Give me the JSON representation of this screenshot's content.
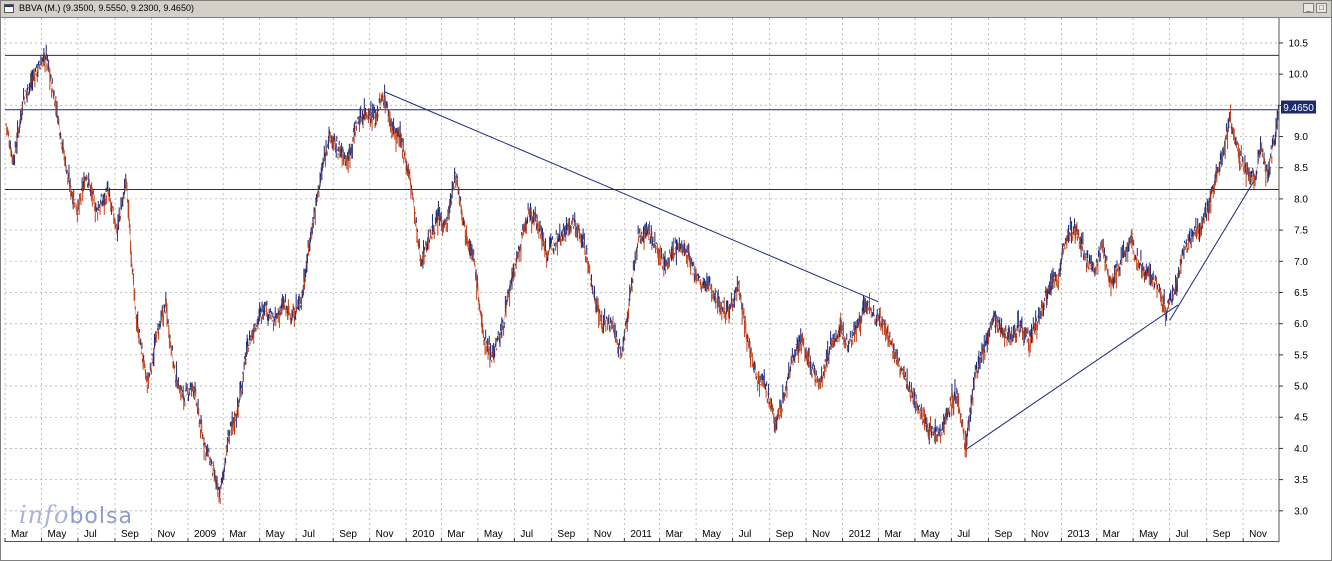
{
  "window": {
    "title": "BBVA (M.) (9.3500, 9.5550, 9.2300, 9.4650)",
    "controls": [
      "minimize",
      "maximize"
    ]
  },
  "logo": {
    "part1": "info",
    "part2": "bolsa"
  },
  "colors": {
    "price_up": "#1a2a7a",
    "price_down": "#c0401a",
    "line": "#1a2a7a",
    "grid": "#b0b0b0"
  },
  "chart_data": {
    "type": "line",
    "ylim": [
      2.5,
      10.9
    ],
    "yticks": [
      3.0,
      3.5,
      4.0,
      4.5,
      5.0,
      5.5,
      6.0,
      6.5,
      7.0,
      7.5,
      8.0,
      8.5,
      9.0,
      9.5,
      10.0,
      10.5
    ],
    "last_price_label": "9.4650",
    "last_price": 9.465,
    "x_labels": [
      "Mar",
      "May",
      "Jul",
      "Sep",
      "Nov",
      "2009",
      "Mar",
      "May",
      "Jul",
      "Sep",
      "Nov",
      "2010",
      "Mar",
      "May",
      "Jul",
      "Sep",
      "Nov",
      "2011",
      "Mar",
      "May",
      "Jul",
      "Sep",
      "Nov",
      "2012",
      "Mar",
      "May",
      "Jul",
      "Sep",
      "Nov",
      "2013",
      "Mar",
      "May",
      "Jul",
      "Sep",
      "Nov"
    ],
    "x_range": [
      "2008-03-01",
      "2013-12-31"
    ],
    "horizontal_lines": [
      10.3,
      9.43,
      8.15
    ],
    "trendlines": [
      {
        "from": [
          "2009-11-25",
          9.72
        ],
        "to": [
          "2012-03-01",
          6.35
        ]
      },
      {
        "from": [
          "2012-07-25",
          3.98
        ],
        "to": [
          "2013-07-15",
          6.3
        ]
      },
      {
        "from": [
          "2013-07-01",
          6.05
        ],
        "to": [
          "2013-11-20",
          8.3
        ]
      }
    ],
    "series": [
      {
        "values": [
          [
            "2008-03-03",
            9.2
          ],
          [
            "2008-03-15",
            8.6
          ],
          [
            "2008-04-01",
            9.6
          ],
          [
            "2008-04-20",
            10.0
          ],
          [
            "2008-05-08",
            10.3
          ],
          [
            "2008-05-25",
            9.5
          ],
          [
            "2008-06-15",
            8.3
          ],
          [
            "2008-07-01",
            7.8
          ],
          [
            "2008-07-15",
            8.4
          ],
          [
            "2008-08-01",
            7.8
          ],
          [
            "2008-08-20",
            8.1
          ],
          [
            "2008-09-05",
            7.5
          ],
          [
            "2008-09-20",
            8.3
          ],
          [
            "2008-10-05",
            6.2
          ],
          [
            "2008-10-25",
            5.0
          ],
          [
            "2008-11-10",
            5.8
          ],
          [
            "2008-11-25",
            6.3
          ],
          [
            "2008-12-10",
            5.2
          ],
          [
            "2008-12-25",
            4.8
          ],
          [
            "2009-01-10",
            5.0
          ],
          [
            "2009-01-25",
            4.2
          ],
          [
            "2009-02-10",
            3.7
          ],
          [
            "2009-02-23",
            3.2
          ],
          [
            "2009-03-10",
            4.2
          ],
          [
            "2009-03-25",
            4.6
          ],
          [
            "2009-04-10",
            5.6
          ],
          [
            "2009-04-25",
            6.0
          ],
          [
            "2009-05-10",
            6.3
          ],
          [
            "2009-05-25",
            6.0
          ],
          [
            "2009-06-10",
            6.3
          ],
          [
            "2009-06-25",
            6.1
          ],
          [
            "2009-07-10",
            6.4
          ],
          [
            "2009-07-25",
            7.4
          ],
          [
            "2009-08-10",
            8.3
          ],
          [
            "2009-08-25",
            9.0
          ],
          [
            "2009-09-10",
            8.8
          ],
          [
            "2009-09-25",
            8.6
          ],
          [
            "2009-10-10",
            9.2
          ],
          [
            "2009-10-25",
            9.4
          ],
          [
            "2009-11-10",
            9.3
          ],
          [
            "2009-11-25",
            9.65
          ],
          [
            "2009-12-10",
            9.1
          ],
          [
            "2009-12-25",
            8.9
          ],
          [
            "2010-01-10",
            8.2
          ],
          [
            "2010-01-25",
            7.0
          ],
          [
            "2010-02-10",
            7.4
          ],
          [
            "2010-02-25",
            7.7
          ],
          [
            "2010-03-10",
            7.6
          ],
          [
            "2010-03-25",
            8.4
          ],
          [
            "2010-04-10",
            7.5
          ],
          [
            "2010-04-25",
            7.0
          ],
          [
            "2010-05-10",
            5.8
          ],
          [
            "2010-05-25",
            5.5
          ],
          [
            "2010-06-10",
            5.9
          ],
          [
            "2010-06-25",
            6.6
          ],
          [
            "2010-07-10",
            7.2
          ],
          [
            "2010-07-25",
            7.8
          ],
          [
            "2010-08-10",
            7.6
          ],
          [
            "2010-08-25",
            7.1
          ],
          [
            "2010-09-10",
            7.4
          ],
          [
            "2010-09-25",
            7.5
          ],
          [
            "2010-10-10",
            7.6
          ],
          [
            "2010-10-25",
            7.3
          ],
          [
            "2010-11-10",
            6.5
          ],
          [
            "2010-11-25",
            6.0
          ],
          [
            "2010-12-10",
            6.0
          ],
          [
            "2010-12-28",
            5.5
          ],
          [
            "2011-01-10",
            6.4
          ],
          [
            "2011-01-25",
            7.4
          ],
          [
            "2011-02-10",
            7.5
          ],
          [
            "2011-02-25",
            7.2
          ],
          [
            "2011-03-10",
            6.9
          ],
          [
            "2011-03-25",
            7.2
          ],
          [
            "2011-04-10",
            7.2
          ],
          [
            "2011-04-25",
            6.9
          ],
          [
            "2011-05-10",
            6.6
          ],
          [
            "2011-05-25",
            6.6
          ],
          [
            "2011-06-10",
            6.3
          ],
          [
            "2011-06-25",
            6.2
          ],
          [
            "2011-07-10",
            6.6
          ],
          [
            "2011-07-25",
            5.8
          ],
          [
            "2011-08-10",
            5.2
          ],
          [
            "2011-08-25",
            5.0
          ],
          [
            "2011-09-10",
            4.4
          ],
          [
            "2011-09-25",
            4.8
          ],
          [
            "2011-10-10",
            5.5
          ],
          [
            "2011-10-25",
            5.7
          ],
          [
            "2011-11-10",
            5.3
          ],
          [
            "2011-11-25",
            5.0
          ],
          [
            "2011-12-10",
            5.6
          ],
          [
            "2011-12-28",
            5.9
          ],
          [
            "2012-01-10",
            5.7
          ],
          [
            "2012-01-25",
            5.9
          ],
          [
            "2012-02-10",
            6.3
          ],
          [
            "2012-02-25",
            6.1
          ],
          [
            "2012-03-10",
            6.0
          ],
          [
            "2012-03-25",
            5.6
          ],
          [
            "2012-04-10",
            5.2
          ],
          [
            "2012-04-25",
            4.9
          ],
          [
            "2012-05-10",
            4.6
          ],
          [
            "2012-05-25",
            4.3
          ],
          [
            "2012-06-10",
            4.2
          ],
          [
            "2012-06-25",
            4.6
          ],
          [
            "2012-07-10",
            4.9
          ],
          [
            "2012-07-25",
            4.0
          ],
          [
            "2012-08-10",
            5.2
          ],
          [
            "2012-08-25",
            5.6
          ],
          [
            "2012-09-10",
            6.1
          ],
          [
            "2012-09-25",
            5.9
          ],
          [
            "2012-10-10",
            5.8
          ],
          [
            "2012-10-25",
            6.0
          ],
          [
            "2012-11-10",
            5.7
          ],
          [
            "2012-11-25",
            6.1
          ],
          [
            "2012-12-10",
            6.6
          ],
          [
            "2012-12-28",
            6.8
          ],
          [
            "2013-01-10",
            7.4
          ],
          [
            "2013-01-25",
            7.5
          ],
          [
            "2013-02-10",
            7.1
          ],
          [
            "2013-02-25",
            6.8
          ],
          [
            "2013-03-10",
            7.3
          ],
          [
            "2013-03-25",
            6.6
          ],
          [
            "2013-04-10",
            7.0
          ],
          [
            "2013-04-25",
            7.3
          ],
          [
            "2013-05-10",
            7.0
          ],
          [
            "2013-05-25",
            6.8
          ],
          [
            "2013-06-10",
            6.6
          ],
          [
            "2013-06-25",
            6.2
          ],
          [
            "2013-07-10",
            6.5
          ],
          [
            "2013-07-25",
            7.2
          ],
          [
            "2013-08-10",
            7.4
          ],
          [
            "2013-08-25",
            7.6
          ],
          [
            "2013-09-10",
            8.1
          ],
          [
            "2013-09-25",
            8.6
          ],
          [
            "2013-10-10",
            9.3
          ],
          [
            "2013-10-25",
            8.7
          ],
          [
            "2013-11-10",
            8.4
          ],
          [
            "2013-11-20",
            8.3
          ],
          [
            "2013-12-01",
            8.8
          ],
          [
            "2013-12-12",
            8.4
          ],
          [
            "2013-12-24",
            9.0
          ],
          [
            "2013-12-31",
            9.465
          ]
        ]
      }
    ]
  }
}
